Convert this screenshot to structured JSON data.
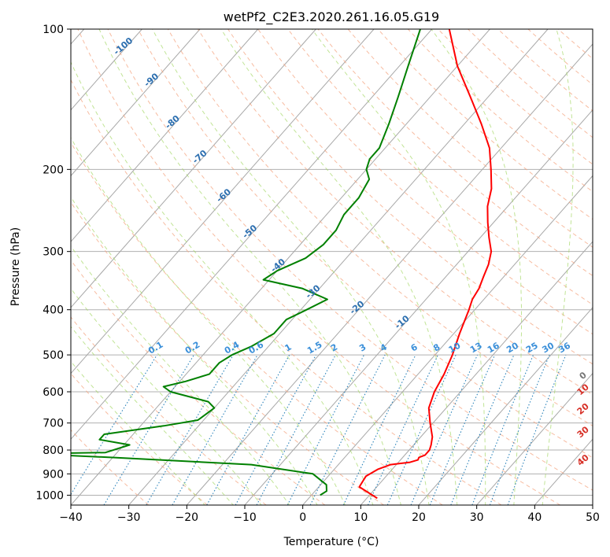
{
  "chart_data": {
    "type": "line",
    "diagram": "skew-t log-p",
    "title": "wetPf2_C2E3.2020.261.16.05.G19",
    "xlabel": "Temperature (°C)",
    "ylabel": "Pressure (hPa)",
    "xlim": [
      -40,
      50
    ],
    "ylim": [
      1050,
      100
    ],
    "yscale": "log",
    "grid": true,
    "xticks": [
      "−40",
      "−30",
      "−20",
      "−10",
      "0",
      "10",
      "20",
      "30",
      "40",
      "50"
    ],
    "yticks": [
      "100",
      "200",
      "300",
      "400",
      "500",
      "600",
      "700",
      "800",
      "900",
      "1000"
    ],
    "dry_adiabat_labels": [],
    "moist_adiabat_labels": [
      "-100",
      "-90",
      "-80",
      "-70",
      "-60",
      "-50",
      "-40",
      "-30",
      "-20",
      "-10"
    ],
    "mixing_ratio_labels": [
      "0.1",
      "0.2",
      "0.4",
      "0.6",
      "1",
      "1.5",
      "2",
      "3",
      "4",
      "6",
      "8",
      "10",
      "13",
      "16",
      "20",
      "25",
      "30",
      "36"
    ],
    "isotherm_labels": [
      "0",
      "10",
      "20",
      "30",
      "40"
    ],
    "series": [
      {
        "color": "#ff0000",
        "pressure": [
          1015,
          1000,
          960,
          910,
          880,
          860,
          850,
          840,
          830,
          820,
          800,
          780,
          750,
          700,
          650,
          600,
          550,
          500,
          450,
          400,
          380,
          360,
          340,
          320,
          300,
          280,
          260,
          240,
          220,
          200,
          180,
          160,
          140,
          120,
          100
        ],
        "temperature": [
          11.8,
          10.5,
          7.0,
          6.5,
          7.5,
          9.0,
          12.0,
          13.0,
          12.8,
          13.5,
          13.5,
          13.0,
          12.0,
          9.5,
          7.0,
          5.5,
          4.5,
          3.0,
          1.0,
          -1.0,
          -2.0,
          -2.5,
          -3.5,
          -4.5,
          -6.0,
          -8.5,
          -11.0,
          -13.5,
          -15.5,
          -18.5,
          -22.0,
          -27.0,
          -33.0,
          -40.0,
          -47.0
        ]
      },
      {
        "color": "#008000",
        "pressure": [
          1000,
          980,
          950,
          900,
          860,
          830,
          815,
          810,
          780,
          760,
          740,
          710,
          690,
          650,
          630,
          600,
          585,
          570,
          550,
          520,
          500,
          480,
          450,
          420,
          400,
          380,
          360,
          345,
          330,
          310,
          290,
          270,
          250,
          230,
          210,
          200,
          190,
          180,
          160,
          140,
          120,
          100
        ],
        "temperature": [
          1.5,
          2.0,
          1.0,
          -3.0,
          -15.0,
          -40.0,
          -55.0,
          -42.0,
          -39.0,
          -45.0,
          -45.0,
          -36.0,
          -31.0,
          -30.0,
          -32.0,
          -40.0,
          -42.0,
          -39.0,
          -36.0,
          -36.0,
          -35.0,
          -33.0,
          -31.0,
          -31.0,
          -29.0,
          -27.0,
          -33.0,
          -41.0,
          -40.0,
          -37.0,
          -36.0,
          -36.0,
          -37.0,
          -37.0,
          -38.0,
          -40.0,
          -41.0,
          -41.0,
          -43.0,
          -45.5,
          -48.5,
          -52.0
        ]
      }
    ]
  }
}
